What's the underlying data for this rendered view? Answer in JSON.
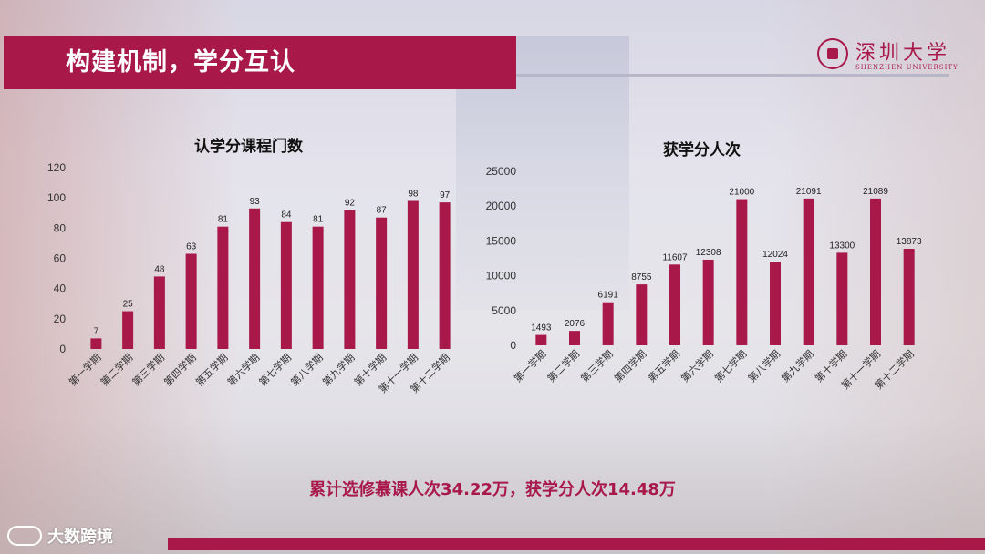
{
  "slide": {
    "title": "构建机制，学分互认",
    "logo_cn": "深圳大学",
    "logo_en": "SHENZHEN UNIVERSITY",
    "summary": "累计选修慕课人次34.22万，获学分人次14.48万",
    "watermark": "大数跨境",
    "accent_color": "#a8194a"
  },
  "chart_data": [
    {
      "type": "bar",
      "title": "认学分课程门数",
      "categories": [
        "第一学期",
        "第二学期",
        "第三学期",
        "第四学期",
        "第五学期",
        "第六学期",
        "第七学期",
        "第八学期",
        "第九学期",
        "第十学期",
        "第十一学期",
        "第十二学期"
      ],
      "values": [
        7,
        25,
        48,
        63,
        81,
        93,
        84,
        81,
        92,
        87,
        98,
        97
      ],
      "ylim": [
        0,
        120
      ],
      "yticks": [
        0,
        20,
        40,
        60,
        80,
        100,
        120
      ],
      "bar_color": "#a8194a",
      "data_labels": true,
      "grid": false
    },
    {
      "type": "bar",
      "title": "获学分人次",
      "categories": [
        "第一学期",
        "第二学期",
        "第三学期",
        "第四学期",
        "第五学期",
        "第六学期",
        "第七学期",
        "第八学期",
        "第九学期",
        "第十学期",
        "第十一学期",
        "第十二学期"
      ],
      "values": [
        1493,
        2076,
        6191,
        8755,
        11607,
        12308,
        21000,
        12024,
        21091,
        13300,
        21089,
        13873
      ],
      "ylim": [
        0,
        25000
      ],
      "yticks": [
        0,
        5000,
        10000,
        15000,
        20000,
        25000
      ],
      "bar_color": "#a8194a",
      "data_labels": true,
      "grid": false
    }
  ]
}
